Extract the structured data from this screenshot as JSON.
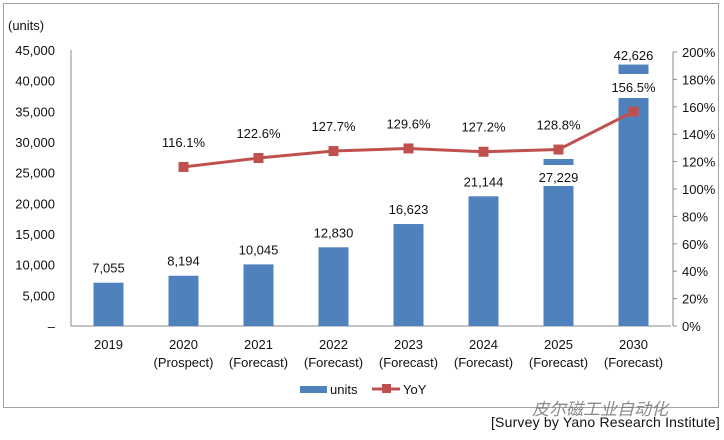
{
  "chart_data": {
    "type": "bar+line",
    "yunit_label": "(units)",
    "categories": [
      {
        "year": "2019",
        "note": ""
      },
      {
        "year": "2020",
        "note": "(Prospect)"
      },
      {
        "year": "2021",
        "note": "(Forecast)"
      },
      {
        "year": "2022",
        "note": "(Forecast)"
      },
      {
        "year": "2023",
        "note": "(Forecast)"
      },
      {
        "year": "2024",
        "note": "(Forecast)"
      },
      {
        "year": "2025",
        "note": "(Forecast)"
      },
      {
        "year": "2030",
        "note": "(Forecast)"
      }
    ],
    "series": [
      {
        "name": "units",
        "type": "bar",
        "axis": "left",
        "color": "#4f81bd",
        "values": [
          7055,
          8194,
          10045,
          12830,
          16623,
          21144,
          27229,
          42626
        ],
        "labels": [
          "7,055",
          "8,194",
          "10,045",
          "12,830",
          "16,623",
          "21,144",
          "27,229",
          "42,626"
        ]
      },
      {
        "name": "YoY",
        "type": "line",
        "axis": "right",
        "color": "#c0504d",
        "values": [
          null,
          116.1,
          122.6,
          127.7,
          129.6,
          127.2,
          128.8,
          156.5
        ],
        "labels": [
          "",
          "116.1%",
          "122.6%",
          "127.7%",
          "129.6%",
          "127.2%",
          "128.8%",
          "156.5%"
        ]
      }
    ],
    "left_axis": {
      "ylim": [
        0,
        45000
      ],
      "ticks": [
        "–",
        "5,000",
        "10,000",
        "15,000",
        "20,000",
        "25,000",
        "30,000",
        "35,000",
        "40,000",
        "45,000"
      ]
    },
    "right_axis": {
      "ylim": [
        0,
        200
      ],
      "ticks": [
        "0%",
        "20%",
        "40%",
        "60%",
        "80%",
        "100%",
        "120%",
        "140%",
        "160%",
        "180%",
        "200%"
      ]
    },
    "legend": {
      "position": "bottom",
      "entries": [
        "units",
        "YoY"
      ]
    },
    "grid": false
  },
  "footer": {
    "credit": "[Survey by Yano Research Institute]",
    "watermark": "皮尔磁工业自动化"
  }
}
